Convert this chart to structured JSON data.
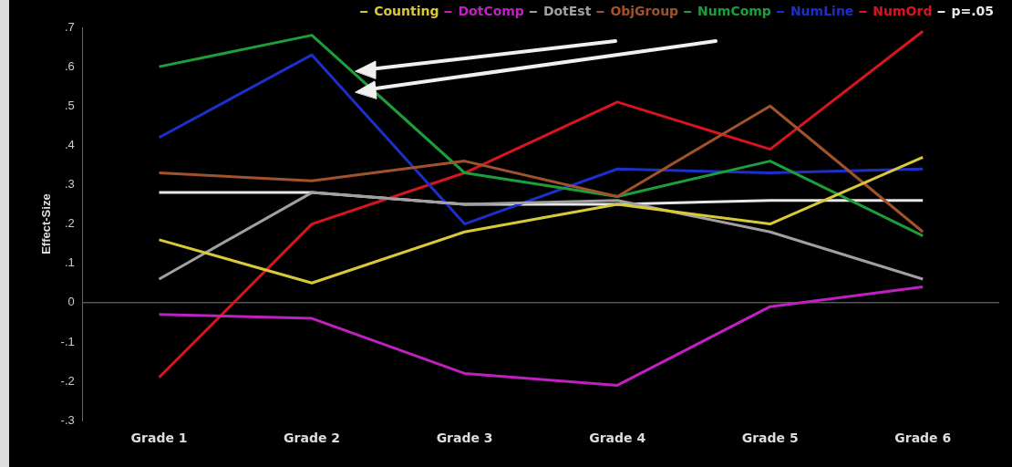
{
  "chart_data": {
    "type": "line",
    "ylabel": "Effect-Size",
    "categories": [
      "Grade 1",
      "Grade 2",
      "Grade 3",
      "Grade 4",
      "Grade 5",
      "Grade 6"
    ],
    "series": [
      {
        "name": "Counting",
        "color": "#d8c83a",
        "values": [
          0.16,
          0.05,
          0.18,
          0.25,
          0.2,
          0.37
        ]
      },
      {
        "name": "DotComp",
        "color": "#c020c0",
        "values": [
          -0.03,
          -0.04,
          -0.18,
          -0.21,
          -0.01,
          0.04
        ]
      },
      {
        "name": "DotEst",
        "color": "#a0a0a0",
        "values": [
          0.06,
          0.28,
          0.25,
          0.26,
          0.18,
          0.06
        ]
      },
      {
        "name": "ObjGroup",
        "color": "#a0522d",
        "values": [
          0.33,
          0.31,
          0.36,
          0.27,
          0.5,
          0.18
        ]
      },
      {
        "name": "NumComp",
        "color": "#1e9e3a",
        "values": [
          0.6,
          0.68,
          0.33,
          0.27,
          0.36,
          0.17
        ]
      },
      {
        "name": "NumLine",
        "color": "#1c2fc8",
        "values": [
          0.42,
          0.63,
          0.2,
          0.34,
          0.33,
          0.34
        ]
      },
      {
        "name": "NumOrd",
        "color": "#d8141e",
        "values": [
          -0.19,
          0.2,
          0.33,
          0.51,
          0.39,
          0.69
        ]
      },
      {
        "name": "p=.05",
        "color": "#e8e8e8",
        "values": [
          0.28,
          0.28,
          0.25,
          0.25,
          0.26,
          0.26
        ]
      }
    ],
    "ylim": [
      -0.3,
      0.7
    ],
    "yticks": [
      {
        "value": -0.3,
        "label": "-.3"
      },
      {
        "value": -0.2,
        "label": "-.2"
      },
      {
        "value": -0.1,
        "label": "-.1"
      },
      0,
      {
        "value": 0.1,
        "label": ".1"
      },
      {
        "value": 0.2,
        "label": ".2"
      },
      {
        "value": 0.3,
        "label": ".3"
      },
      {
        "value": 0.4,
        "label": ".4"
      },
      {
        "value": 0.5,
        "label": ".5"
      },
      {
        "value": 0.6,
        "label": ".6"
      },
      {
        "value": 0.7,
        "label": ".7"
      }
    ],
    "grid": false,
    "legend": "top right",
    "marker": "none",
    "line_style": "solid",
    "ref_lines": [
      {
        "axis": "y",
        "value": 0,
        "color": "#555555"
      }
    ]
  }
}
